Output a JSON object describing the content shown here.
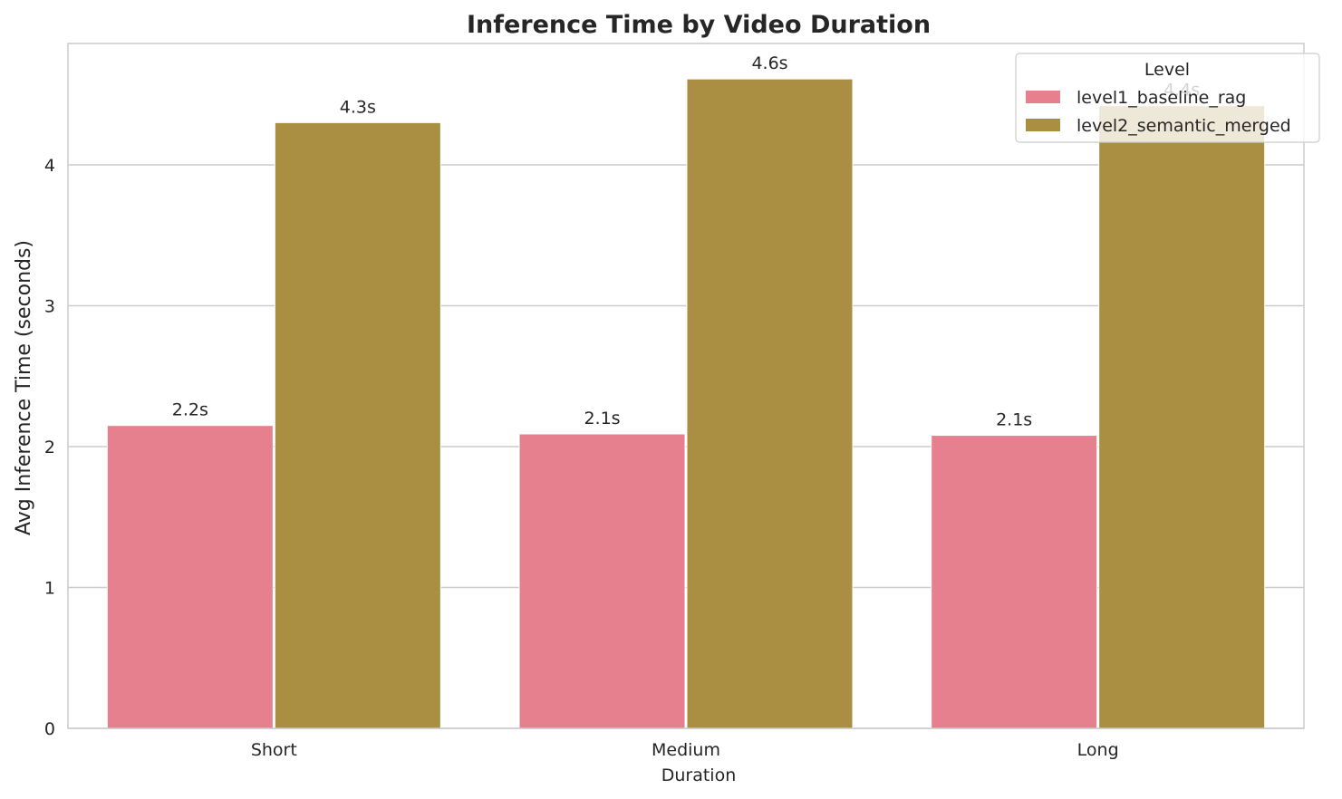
{
  "chart_data": {
    "type": "bar",
    "title": "Inference Time by Video Duration",
    "xlabel": "Duration",
    "ylabel": "Avg Inference Time (seconds)",
    "categories": [
      "Short",
      "Medium",
      "Long"
    ],
    "ylim": [
      0,
      4.85
    ],
    "yticks": [
      0,
      1,
      2,
      3,
      4
    ],
    "grid": true,
    "legend": {
      "title": "Level",
      "placement": "top-right"
    },
    "series": [
      {
        "name": "level1_baseline_rag",
        "color": "#e6808f",
        "values": [
          2.15,
          2.09,
          2.08
        ],
        "labels": [
          "2.2s",
          "2.1s",
          "2.1s"
        ]
      },
      {
        "name": "level2_semantic_merged",
        "color": "#aa8e42",
        "values": [
          4.3,
          4.61,
          4.42
        ],
        "labels": [
          "4.3s",
          "4.6s",
          "4.4s"
        ]
      }
    ]
  }
}
